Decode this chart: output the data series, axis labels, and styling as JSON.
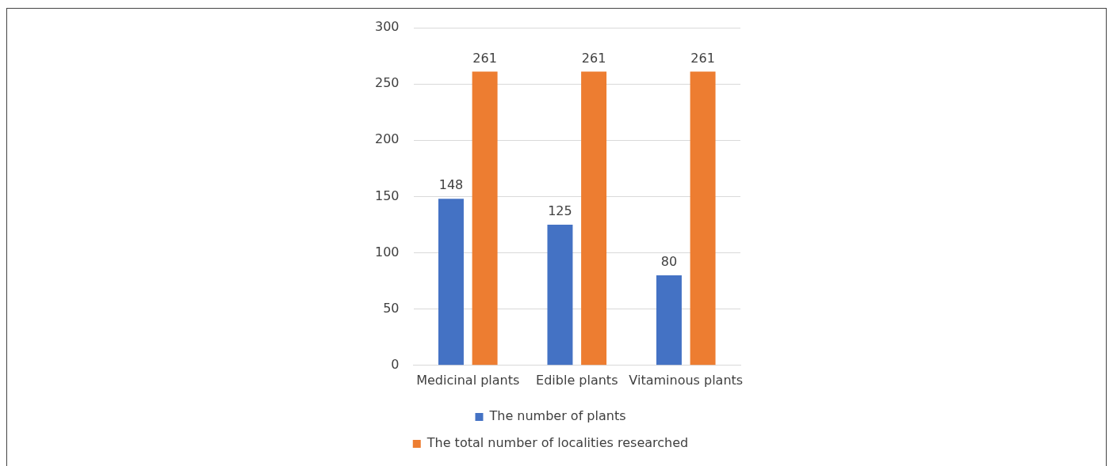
{
  "chart_data": {
    "type": "bar",
    "categories": [
      "Medicinal plants",
      "Edible plants",
      "Vitaminous plants"
    ],
    "series": [
      {
        "name": "The number of plants",
        "color": "#4472c4",
        "values": [
          148,
          125,
          80
        ]
      },
      {
        "name": "The total number of localities researched",
        "color": "#ed7d31",
        "values": [
          261,
          261,
          261
        ]
      }
    ],
    "ylim": [
      0,
      300
    ],
    "yticks": [
      0,
      50,
      100,
      150,
      200,
      250,
      300
    ],
    "grid": "y",
    "legend": "bottom",
    "data_labels": true
  }
}
